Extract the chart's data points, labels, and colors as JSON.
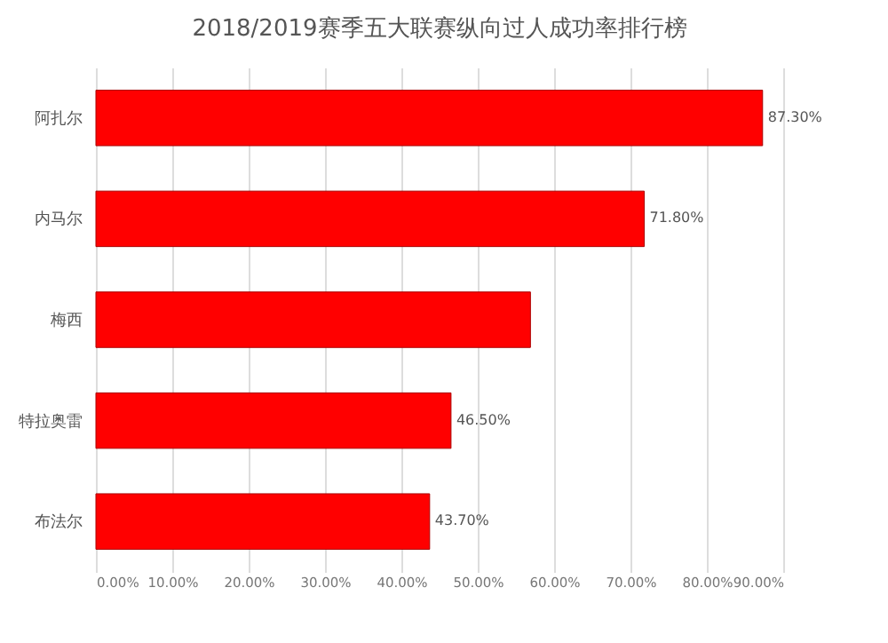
{
  "chart_data": {
    "type": "bar",
    "orientation": "horizontal",
    "title": "2018/2019赛季五大联赛纵向过人成功率排行榜",
    "categories": [
      "阿扎尔",
      "内马尔",
      "梅西",
      "特拉奥雷",
      "布法尔"
    ],
    "values": [
      87.3,
      71.8,
      56.9,
      46.5,
      43.7
    ],
    "value_labels": [
      "87.30%",
      "71.80%",
      null,
      "46.50%",
      "43.70%"
    ],
    "color": "#ff0000",
    "xlim": [
      0,
      90
    ],
    "xticks": [
      {
        "value": 0,
        "label": "0.00%"
      },
      {
        "value": 10,
        "label": "10.00%"
      },
      {
        "value": 20,
        "label": "20.00%"
      },
      {
        "value": 30,
        "label": "30.00%"
      },
      {
        "value": 40,
        "label": "40.00%"
      },
      {
        "value": 50,
        "label": "50.00%"
      },
      {
        "value": 60,
        "label": "60.00%"
      },
      {
        "value": 70,
        "label": "70.00%"
      },
      {
        "value": 80,
        "label": "80.00%"
      },
      {
        "value": 90,
        "label": "90.00%"
      }
    ],
    "grid": "x"
  }
}
